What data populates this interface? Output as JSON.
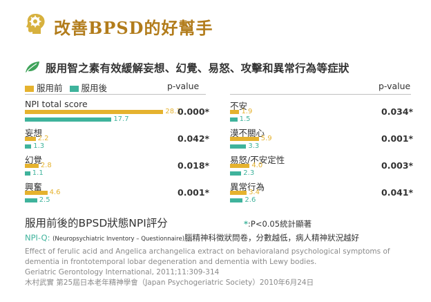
{
  "header": {
    "title": "改善BPSD的好幫手"
  },
  "subtitle": "服用智之素有效緩解妄想、幻覺、易怒、攻擊和異常行為等症狀",
  "legend": {
    "before": "服用前",
    "after": "服用後",
    "pvalue_label": "p-value"
  },
  "colors": {
    "before": "#E5B22E",
    "after": "#3FB39C",
    "title": "#B27C1B",
    "leaf": "#3FA35A",
    "icon": "#D7B13E"
  },
  "chart_data": {
    "type": "bar",
    "title": "服用前後的BPSD狀態NPI評分",
    "xlabel": "",
    "ylabel": "",
    "xlim": [
      0,
      30
    ],
    "series_names": [
      "服用前",
      "服用後"
    ],
    "groups": [
      {
        "label": "NPI total score",
        "before": 28.3,
        "after": 17.7,
        "pvalue": "0.000*"
      },
      {
        "label": "妄想",
        "before": 2.2,
        "after": 1.3,
        "pvalue": "0.042*"
      },
      {
        "label": "幻覺",
        "before": 2.8,
        "after": 1.1,
        "pvalue": "0.018*"
      },
      {
        "label": "興奮",
        "before": 4.6,
        "after": 2.5,
        "pvalue": "0.001*"
      },
      {
        "label": "不安",
        "before": 1.9,
        "after": 1.5,
        "pvalue": "0.034*"
      },
      {
        "label": "漠不關心",
        "before": 5.9,
        "after": 3.3,
        "pvalue": "0.001*"
      },
      {
        "label": "易怒/不安定性",
        "before": 4.0,
        "after": 2.3,
        "pvalue": "0.003*"
      },
      {
        "label": "異常行為",
        "before": 3.4,
        "after": 2.6,
        "pvalue": "0.041*"
      }
    ]
  },
  "caption": "服用前後的BPSD狀態NPI評分",
  "significance": {
    "star": "*",
    "text": ":P<0.05統計顯著"
  },
  "npiq": {
    "label": "NPI-Q",
    "colon": ":",
    "paren": "(Neuropsychiatric Inventory – Questionnaire)",
    "text": "腦精神科徵狀問卷，分數越低，病人精神狀況越好"
  },
  "references": [
    "Effect of ferulic acid and Angelica archangelica extract on behavioraland psychological symptoms of",
    "dementia in frontotemporal lobar degeneration and dementia with Lewy bodies.",
    "Geriatric Gerontology International, 2011;11:309-314",
    "木村武實 第25屆日本老年精神學會（Japan Psychogeriatric Society）2010年6月24日"
  ]
}
